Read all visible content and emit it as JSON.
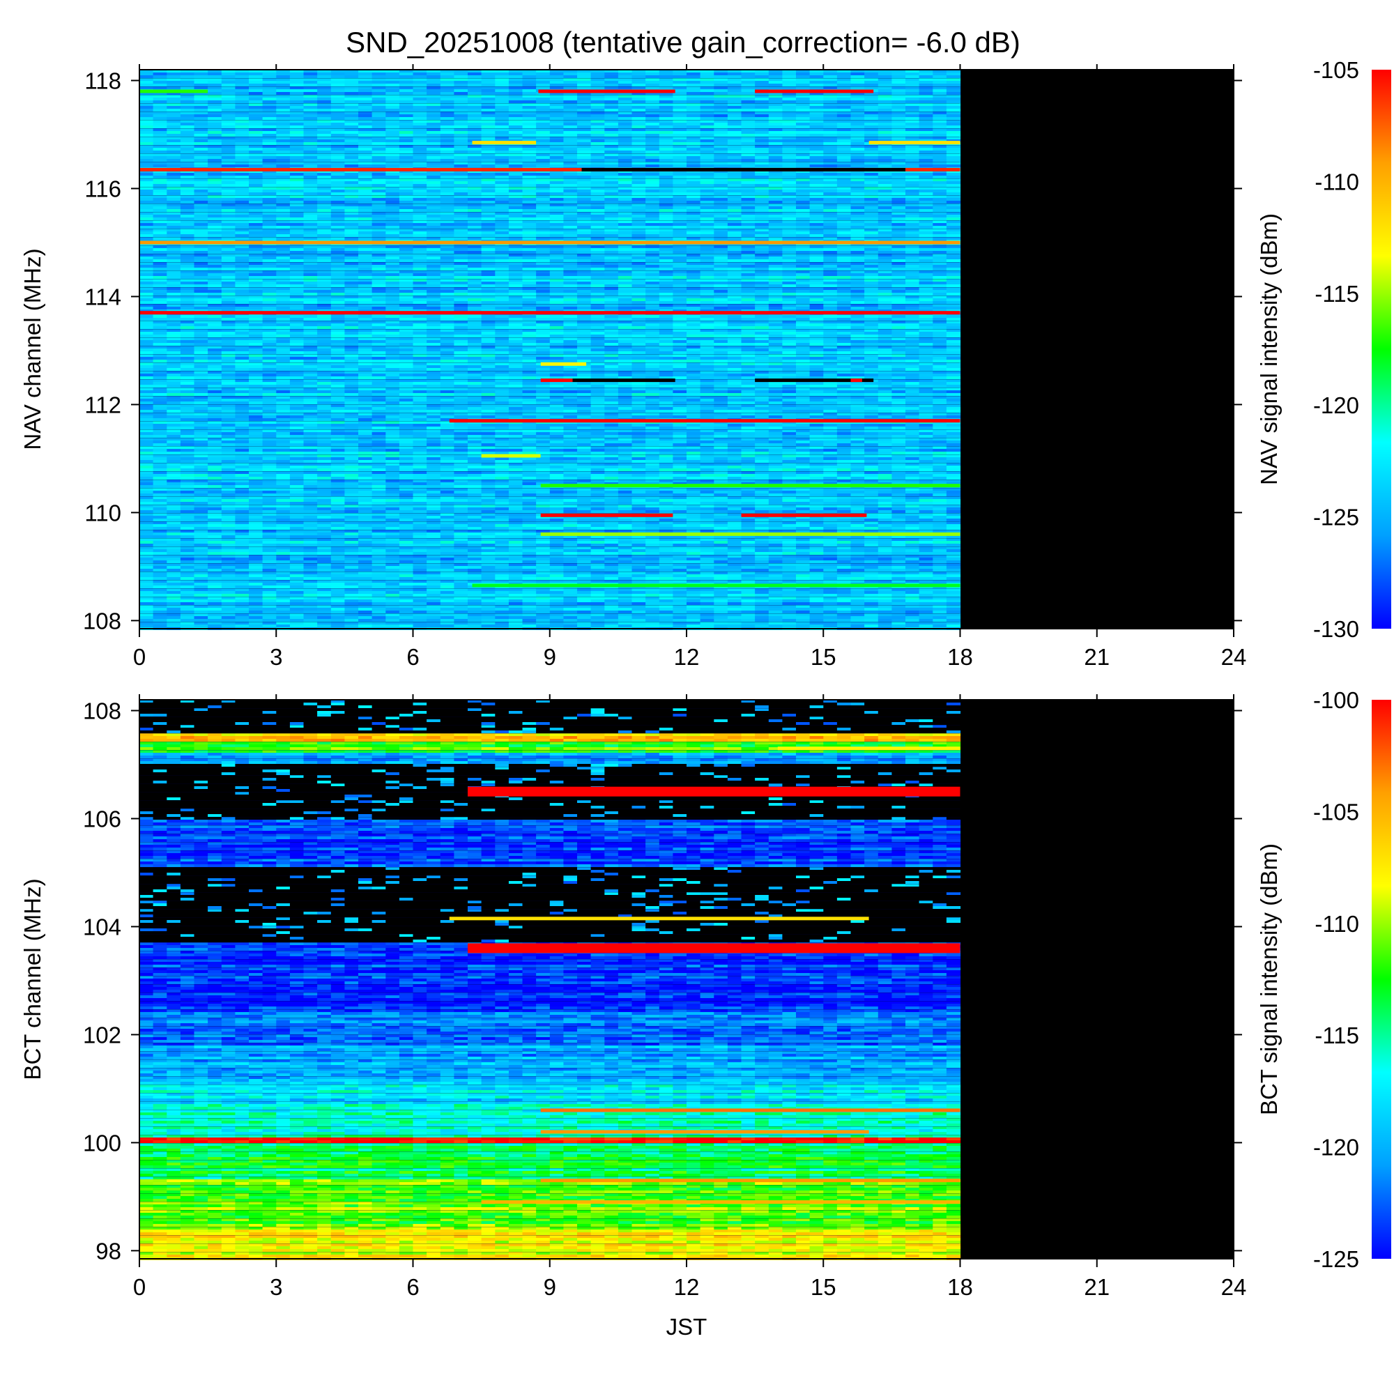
{
  "title": "SND_20251008 (tentative gain_correction= -6.0 dB)",
  "colormap": [
    "#0000ff",
    "#00a0ff",
    "#00ffff",
    "#00ff00",
    "#ffff00",
    "#ffa000",
    "#ff0000"
  ],
  "no_data_color": "#000000",
  "chart_data": [
    {
      "type": "heatmap",
      "panel": "NAV",
      "ylabel": "NAV channel (MHz)",
      "xlabel": "",
      "colorbar_label": "NAV signal intensity (dBm)",
      "xlim": [
        0,
        24
      ],
      "ylim": [
        107.85,
        118.2
      ],
      "xticks": [
        0,
        3,
        6,
        9,
        12,
        15,
        18,
        21,
        24
      ],
      "yticks": [
        108,
        110,
        112,
        114,
        116,
        118
      ],
      "clim": [
        -130,
        -105
      ],
      "cticks": [
        -130,
        -125,
        -120,
        -115,
        -110,
        -105
      ],
      "data_time_range": [
        0,
        18
      ],
      "background_dbm": -124,
      "features": [
        {
          "freq": 117.8,
          "t0": 8.75,
          "t1": 11.75,
          "dbm": -105
        },
        {
          "freq": 117.8,
          "t0": 13.5,
          "t1": 16.1,
          "dbm": -105
        },
        {
          "freq": 117.8,
          "t0": 0,
          "t1": 1.5,
          "dbm": -117
        },
        {
          "freq": 116.85,
          "t0": 7.3,
          "t1": 8.7,
          "dbm": -112
        },
        {
          "freq": 116.85,
          "t0": 16,
          "t1": 18,
          "dbm": -112
        },
        {
          "freq": 116.35,
          "t0": 0,
          "t1": 18,
          "dbm": -106
        },
        {
          "freq": 116.35,
          "t0": 9.7,
          "t1": 16.8,
          "dbm": "nodata"
        },
        {
          "freq": 115.0,
          "t0": 0,
          "t1": 18,
          "dbm": -109
        },
        {
          "freq": 113.7,
          "t0": 0,
          "t1": 18,
          "dbm": -105
        },
        {
          "freq": 112.75,
          "t0": 8.8,
          "t1": 9.8,
          "dbm": -113
        },
        {
          "freq": 112.45,
          "t0": 8.8,
          "t1": 9.5,
          "dbm": -105
        },
        {
          "freq": 112.45,
          "t0": 9.5,
          "t1": 11.75,
          "dbm": "nodata"
        },
        {
          "freq": 112.45,
          "t0": 13.5,
          "t1": 16.1,
          "dbm": "nodata"
        },
        {
          "freq": 112.45,
          "t0": 15.6,
          "t1": 15.85,
          "dbm": -105
        },
        {
          "freq": 111.7,
          "t0": 6.8,
          "t1": 18,
          "dbm": -105
        },
        {
          "freq": 111.05,
          "t0": 7.5,
          "t1": 8.8,
          "dbm": -114
        },
        {
          "freq": 110.5,
          "t0": 8.8,
          "t1": 18,
          "dbm": -117
        },
        {
          "freq": 109.95,
          "t0": 8.8,
          "t1": 11.7,
          "dbm": -105
        },
        {
          "freq": 109.95,
          "t0": 13.2,
          "t1": 15.95,
          "dbm": -105
        },
        {
          "freq": 109.6,
          "t0": 8.8,
          "t1": 18,
          "dbm": -115
        },
        {
          "freq": 108.65,
          "t0": 7.3,
          "t1": 18,
          "dbm": -118
        }
      ]
    },
    {
      "type": "heatmap",
      "panel": "BCT",
      "ylabel": "BCT channel (MHz)",
      "xlabel": "JST",
      "colorbar_label": "BCT signal intensity (dBm)",
      "xlim": [
        0,
        24
      ],
      "ylim": [
        97.85,
        108.2
      ],
      "xticks": [
        0,
        3,
        6,
        9,
        12,
        15,
        18,
        21,
        24
      ],
      "yticks": [
        98,
        100,
        102,
        104,
        106,
        108
      ],
      "clim": [
        -125,
        -100
      ],
      "cticks": [
        -125,
        -120,
        -115,
        -110,
        -105,
        -100
      ],
      "data_time_range": [
        0,
        18
      ],
      "bands": [
        {
          "f0": 97.85,
          "f1": 98.4,
          "dbm": -108
        },
        {
          "f0": 98.4,
          "f1": 99.3,
          "dbm": -111
        },
        {
          "f0": 99.3,
          "f1": 100.0,
          "dbm": -114
        },
        {
          "f0": 100.0,
          "f1": 100.12,
          "dbm": -100
        },
        {
          "f0": 100.12,
          "f1": 100.7,
          "dbm": -116
        },
        {
          "f0": 100.7,
          "f1": 101.2,
          "dbm": -118
        },
        {
          "f0": 101.2,
          "f1": 101.8,
          "dbm": -120
        },
        {
          "f0": 101.8,
          "f1": 102.4,
          "dbm": -122
        },
        {
          "f0": 102.4,
          "f1": 103.5,
          "dbm": -124
        },
        {
          "f0": 103.5,
          "f1": 103.7,
          "dbm": -124
        },
        {
          "f0": 103.7,
          "f1": 105.1,
          "dbm": "nodata"
        },
        {
          "f0": 105.1,
          "f1": 106.0,
          "dbm": -123
        },
        {
          "f0": 106.0,
          "f1": 107.0,
          "dbm": "nodata"
        },
        {
          "f0": 107.0,
          "f1": 107.2,
          "dbm": -121
        },
        {
          "f0": 107.2,
          "f1": 107.4,
          "dbm": -112
        },
        {
          "f0": 107.4,
          "f1": 107.6,
          "dbm": -106
        },
        {
          "f0": 107.6,
          "f1": 108.2,
          "dbm": "nodata"
        }
      ],
      "features": [
        {
          "freq": 103.6,
          "t0": 7.2,
          "t1": 18,
          "dbm": -100
        },
        {
          "freq": 106.5,
          "t0": 7.2,
          "t1": 18,
          "dbm": -100
        },
        {
          "freq": 104.15,
          "t0": 6.8,
          "t1": 16,
          "dbm": -107
        },
        {
          "freq": 100.6,
          "t0": 8.8,
          "t1": 18,
          "dbm": -103
        },
        {
          "freq": 100.2,
          "t0": 8.8,
          "t1": 16,
          "dbm": -104
        },
        {
          "freq": 99.3,
          "t0": 8.8,
          "t1": 18,
          "dbm": -104
        },
        {
          "freq": 98.9,
          "t0": 7.5,
          "t1": 18,
          "dbm": -105
        },
        {
          "freq": 107.3,
          "t0": 14,
          "t1": 18,
          "dbm": -108
        }
      ]
    }
  ]
}
